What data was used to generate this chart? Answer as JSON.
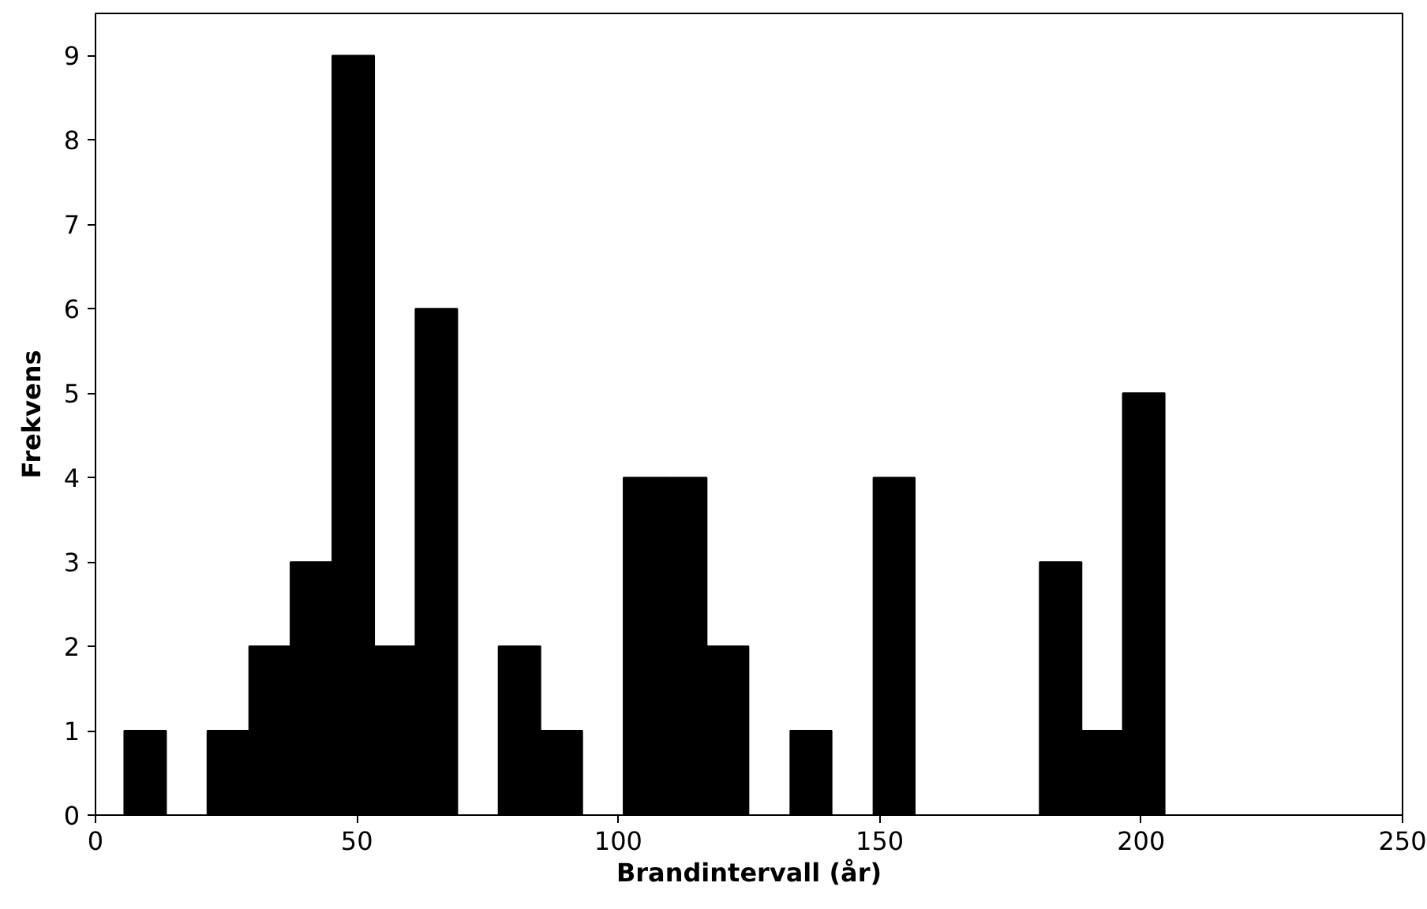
{
  "chart_data": {
    "type": "histogram",
    "xlabel": "Brandintervall (år)",
    "ylabel": "Frekvens",
    "bins": [
      5.5,
      13.5,
      21.4,
      29.4,
      37.3,
      45.3,
      53.3,
      61.2,
      69.2,
      77.1,
      85.1,
      93.1,
      101.0,
      109.0,
      116.9,
      124.9,
      132.9,
      140.8,
      148.8,
      156.7,
      164.7,
      172.7,
      180.6,
      188.6,
      196.5,
      204.5
    ],
    "values": [
      1,
      0,
      1,
      2,
      3,
      9,
      2,
      6,
      0,
      2,
      1,
      0,
      4,
      4,
      2,
      0,
      1,
      0,
      4,
      0,
      0,
      0,
      3,
      1,
      5
    ],
    "color": "#000000",
    "xlim": [
      0,
      250
    ],
    "xticks": [
      0,
      50,
      100,
      150,
      200,
      250
    ],
    "ylim": [
      0,
      9.5
    ],
    "yticks": [
      0,
      1,
      2,
      3,
      4,
      5,
      6,
      7,
      8,
      9
    ],
    "grid": false
  }
}
